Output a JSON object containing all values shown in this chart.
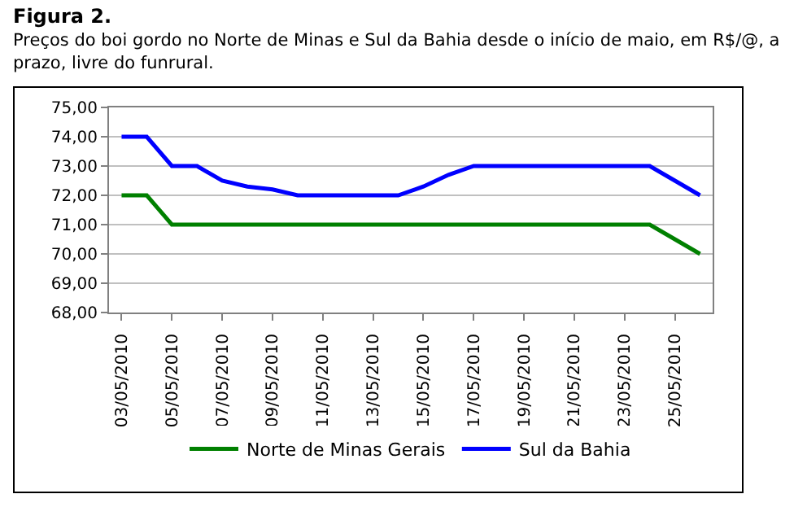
{
  "chart_data": {
    "type": "line",
    "title": "Figura 2.",
    "subtitle": "Preços do boi gordo no Norte de Minas e Sul da Bahia desde o início de maio, em R$/@, a prazo, livre do funrural.",
    "x": [
      "2010-05-03",
      "2010-05-04",
      "2010-05-05",
      "2010-05-06",
      "2010-05-07",
      "2010-05-08",
      "2010-05-09",
      "2010-05-10",
      "2010-05-11",
      "2010-05-12",
      "2010-05-13",
      "2010-05-14",
      "2010-05-15",
      "2010-05-16",
      "2010-05-17",
      "2010-05-18",
      "2010-05-19",
      "2010-05-20",
      "2010-05-21",
      "2010-05-22",
      "2010-05-23",
      "2010-05-24",
      "2010-05-25",
      "2010-05-26"
    ],
    "series": [
      {
        "name": "Norte de Minas Gerais",
        "color": "#008000",
        "values": [
          72,
          72,
          71,
          71,
          71,
          71,
          71,
          71,
          71,
          71,
          71,
          71,
          71,
          71,
          71,
          71,
          71,
          71,
          71,
          71,
          71,
          71,
          70.5,
          70
        ]
      },
      {
        "name": "Sul da Bahia",
        "color": "#0000ff",
        "values": [
          74,
          74,
          73,
          73,
          72.5,
          72.3,
          72.2,
          72,
          72,
          72,
          72,
          72,
          72.3,
          72.7,
          73,
          73,
          73,
          73,
          73,
          73,
          73,
          73,
          72.5,
          72
        ]
      }
    ],
    "xlim": [
      "2010-05-02T12:00",
      "2010-05-26T12:00"
    ],
    "xticks": [
      {
        "value": "2010-05-03",
        "label": "03/05/2010"
      },
      {
        "value": "2010-05-05",
        "label": "05/05/2010"
      },
      {
        "value": "2010-05-07",
        "label": "07/05/2010"
      },
      {
        "value": "2010-05-09",
        "label": "09/05/2010"
      },
      {
        "value": "2010-05-11",
        "label": "11/05/2010"
      },
      {
        "value": "2010-05-13",
        "label": "13/05/2010"
      },
      {
        "value": "2010-05-15",
        "label": "15/05/2010"
      },
      {
        "value": "2010-05-17",
        "label": "17/05/2010"
      },
      {
        "value": "2010-05-19",
        "label": "19/05/2010"
      },
      {
        "value": "2010-05-21",
        "label": "21/05/2010"
      },
      {
        "value": "2010-05-23",
        "label": "23/05/2010"
      },
      {
        "value": "2010-05-25",
        "label": "25/05/2010"
      }
    ],
    "ylim": [
      68,
      75
    ],
    "yticks": [
      {
        "value": 68,
        "label": "68,00"
      },
      {
        "value": 69,
        "label": "69,00"
      },
      {
        "value": 70,
        "label": "70,00"
      },
      {
        "value": 71,
        "label": "71,00"
      },
      {
        "value": 72,
        "label": "72,00"
      },
      {
        "value": 73,
        "label": "73,00"
      },
      {
        "value": 74,
        "label": "74,00"
      },
      {
        "value": 75,
        "label": "75,00"
      }
    ],
    "grid": "y",
    "legend": "bottom",
    "marker": "none",
    "line_style": "solid"
  }
}
